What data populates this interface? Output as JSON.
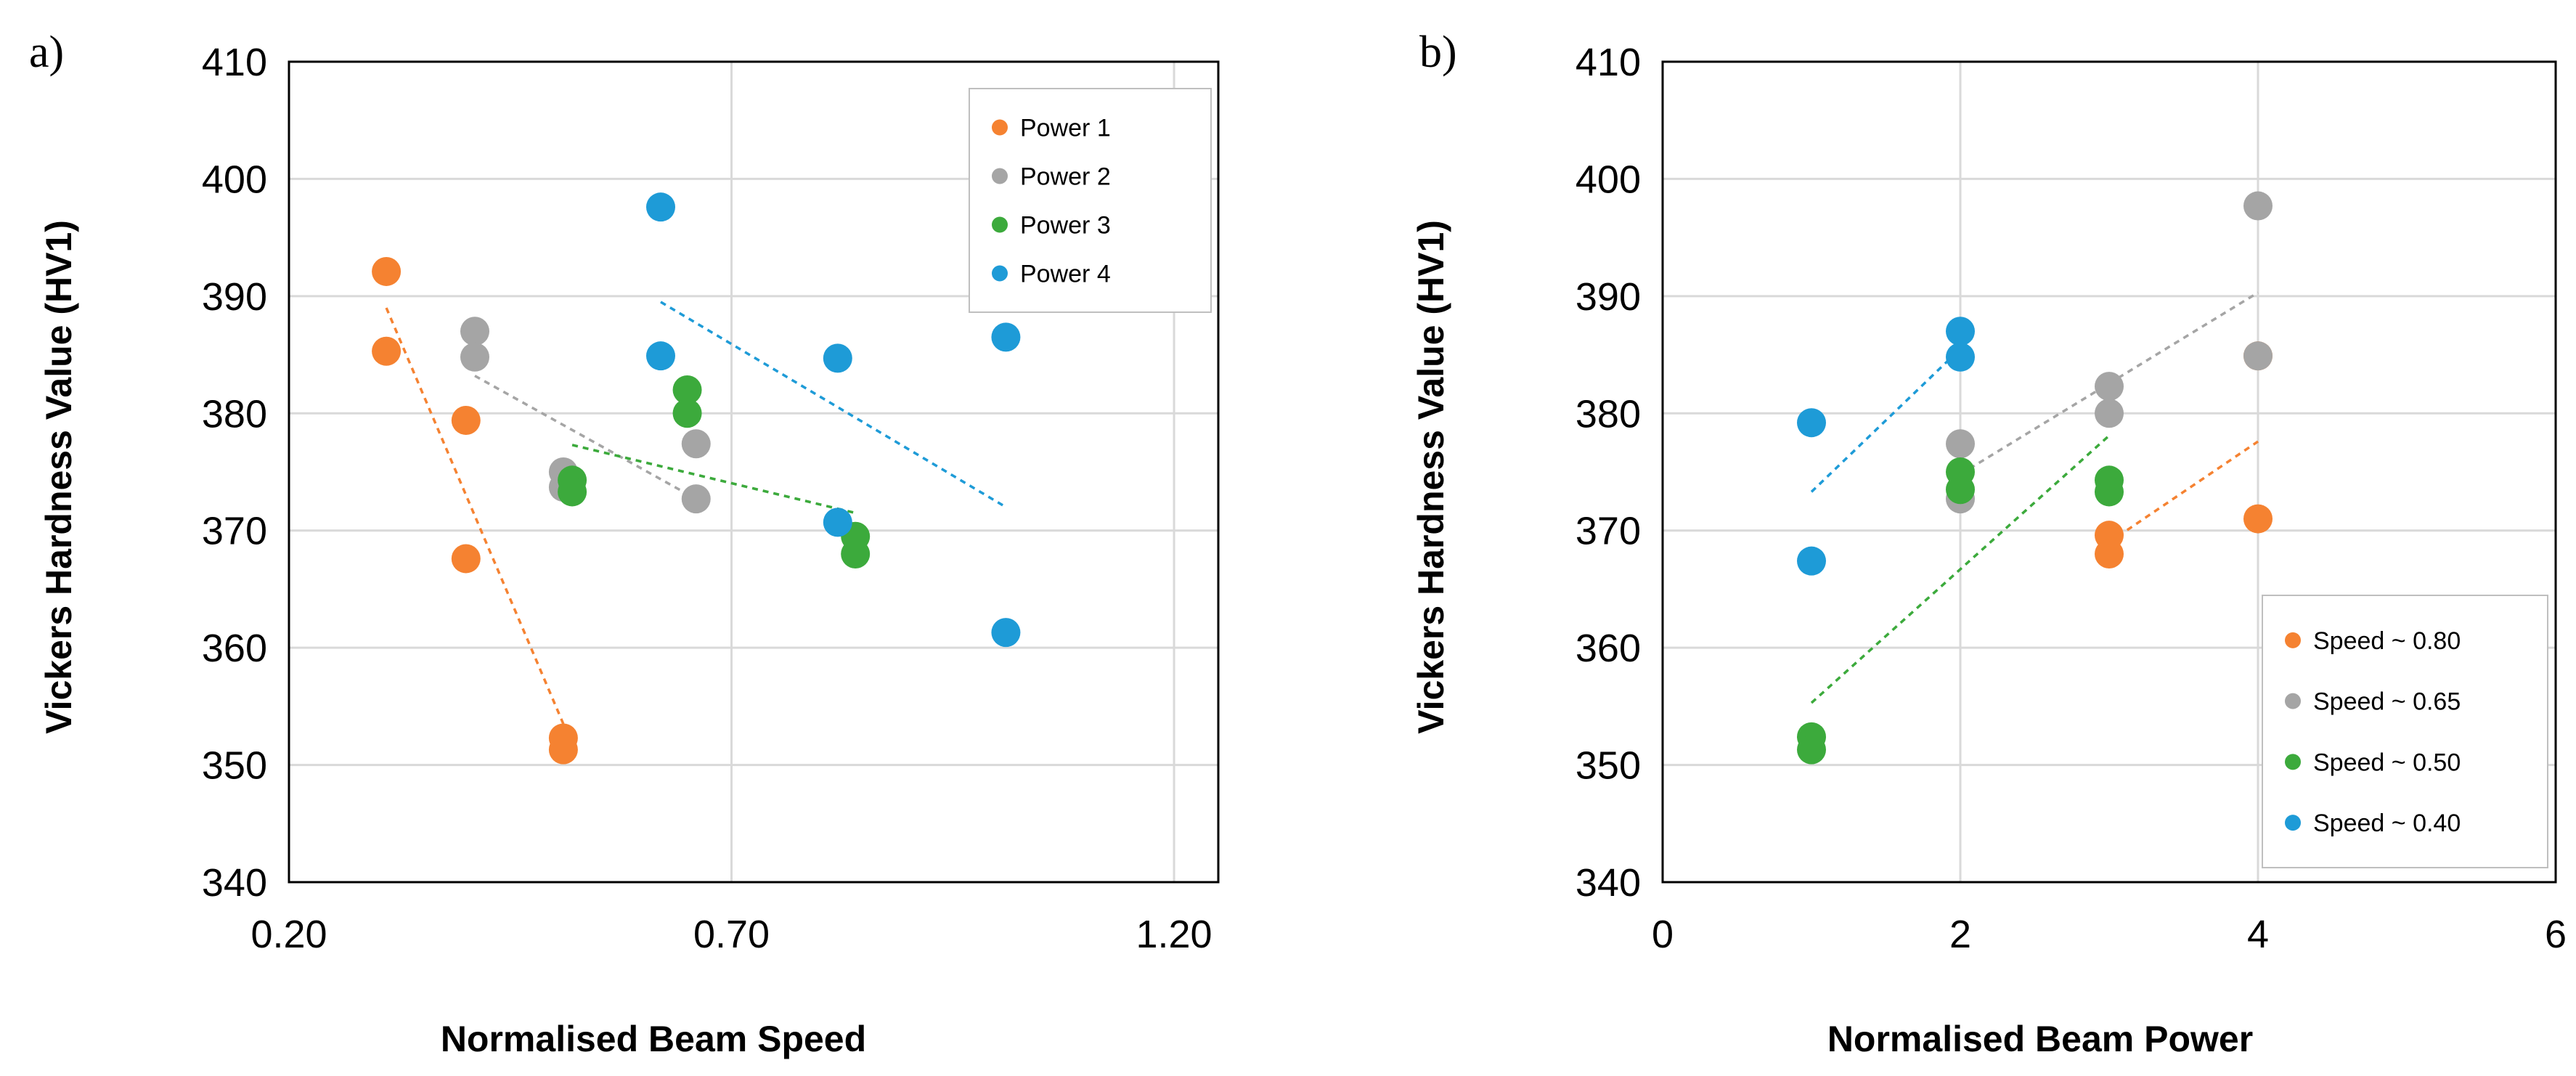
{
  "chart_data": [
    {
      "type": "scatter",
      "panel_label": "a)",
      "title": "",
      "xlabel": "Normalised Beam Speed",
      "ylabel": "Vickers Hardness Value (HV1)",
      "xlim": [
        0.2,
        1.25
      ],
      "ylim": [
        340,
        410
      ],
      "xticks": [
        "0.20",
        "0.70",
        "1.20"
      ],
      "xtick_values": [
        0.2,
        0.7,
        1.2
      ],
      "yticks": [
        "340",
        "350",
        "360",
        "370",
        "380",
        "390",
        "400",
        "410"
      ],
      "ytick_values": [
        340,
        350,
        360,
        370,
        380,
        390,
        400,
        410
      ],
      "grid": true,
      "legend_position": "top-right",
      "series": [
        {
          "name": "Power 1",
          "color": "#F58231",
          "points": [
            [
              0.31,
              392.1
            ],
            [
              0.31,
              385.3
            ],
            [
              0.4,
              379.4
            ],
            [
              0.4,
              367.6
            ],
            [
              0.51,
              352.3
            ],
            [
              0.51,
              351.3
            ]
          ],
          "trend": [
            [
              0.31,
              389.0
            ],
            [
              0.51,
              353.5
            ]
          ]
        },
        {
          "name": "Power 2",
          "color": "#A5A5A5",
          "points": [
            [
              0.41,
              387.0
            ],
            [
              0.41,
              384.8
            ],
            [
              0.51,
              375.0
            ],
            [
              0.51,
              373.7
            ],
            [
              0.66,
              377.4
            ],
            [
              0.66,
              372.7
            ]
          ],
          "trend": [
            [
              0.41,
              383.2
            ],
            [
              0.66,
              372.7
            ]
          ]
        },
        {
          "name": "Power 3",
          "color": "#3CAA3C",
          "points": [
            [
              0.52,
              374.3
            ],
            [
              0.52,
              373.3
            ],
            [
              0.65,
              382.0
            ],
            [
              0.65,
              380.0
            ],
            [
              0.84,
              369.5
            ],
            [
              0.84,
              368.0
            ]
          ],
          "trend": [
            [
              0.52,
              377.3
            ],
            [
              0.84,
              371.5
            ]
          ]
        },
        {
          "name": "Power 4",
          "color": "#1E9BD7",
          "points": [
            [
              0.62,
              397.6
            ],
            [
              0.62,
              384.9
            ],
            [
              0.82,
              384.7
            ],
            [
              0.82,
              370.7
            ],
            [
              1.01,
              386.5
            ],
            [
              1.01,
              361.3
            ]
          ],
          "trend": [
            [
              0.62,
              389.5
            ],
            [
              1.01,
              372.0
            ]
          ]
        }
      ]
    },
    {
      "type": "scatter",
      "panel_label": "b)",
      "title": "",
      "xlabel": "Normalised Beam Power",
      "ylabel": "Vickers Hardness Value (HV1)",
      "xlim": [
        0,
        6
      ],
      "ylim": [
        340,
        410
      ],
      "xticks": [
        "0",
        "2",
        "4",
        "6"
      ],
      "xtick_values": [
        0,
        2,
        4,
        6
      ],
      "yticks": [
        "340",
        "350",
        "360",
        "370",
        "380",
        "390",
        "400",
        "410"
      ],
      "ytick_values": [
        340,
        350,
        360,
        370,
        380,
        390,
        400,
        410
      ],
      "grid": true,
      "legend_position": "bottom-right",
      "series": [
        {
          "name": "Speed ~ 0.80",
          "color": "#F58231",
          "points": [
            [
              3,
              369.6
            ],
            [
              3,
              368.0
            ],
            [
              4,
              384.9
            ],
            [
              4,
              371.0
            ]
          ],
          "trend": [
            [
              3,
              369.0
            ],
            [
              4,
              377.6
            ]
          ]
        },
        {
          "name": "Speed ~ 0.65",
          "color": "#A5A5A5",
          "points": [
            [
              2,
              377.4
            ],
            [
              2,
              372.7
            ],
            [
              3,
              382.3
            ],
            [
              3,
              380.0
            ],
            [
              4,
              397.7
            ],
            [
              4,
              384.9
            ]
          ],
          "trend": [
            [
              2,
              374.8
            ],
            [
              4,
              390.3
            ]
          ]
        },
        {
          "name": "Speed ~ 0.50",
          "color": "#3CAA3C",
          "points": [
            [
              1,
              352.4
            ],
            [
              1,
              351.3
            ],
            [
              2,
              375.0
            ],
            [
              2,
              373.5
            ],
            [
              3,
              374.3
            ],
            [
              3,
              373.3
            ]
          ],
          "trend": [
            [
              1,
              355.3
            ],
            [
              3,
              378.1
            ]
          ]
        },
        {
          "name": "Speed ~ 0.40",
          "color": "#1E9BD7",
          "points": [
            [
              1,
              379.2
            ],
            [
              1,
              367.4
            ],
            [
              2,
              387.0
            ],
            [
              2,
              384.8
            ]
          ],
          "trend": [
            [
              1,
              373.3
            ],
            [
              2,
              385.5
            ]
          ]
        }
      ]
    }
  ]
}
